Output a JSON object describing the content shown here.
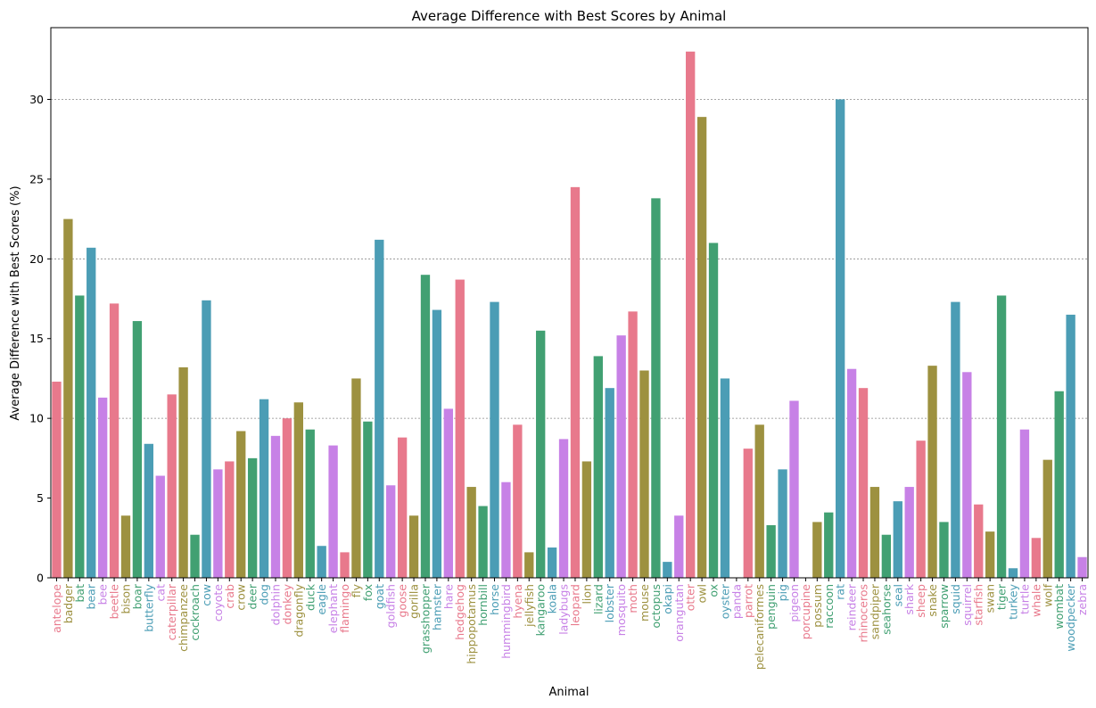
{
  "chart_data": {
    "type": "bar",
    "title": "Average Difference with Best Scores by Animal",
    "xlabel": "Animal",
    "ylabel": "Average Difference with Best Scores (%)",
    "ylim": [
      0,
      34.5
    ],
    "yticks": [
      0,
      5,
      10,
      15,
      20,
      25,
      30
    ],
    "grid": "horizontal dashed at 10, 20, 30",
    "palette": [
      "#e8798c",
      "#9d9140",
      "#41a072",
      "#4b9db5",
      "#c781e6"
    ],
    "categories": [
      "antelope",
      "badger",
      "bat",
      "bear",
      "bee",
      "beetle",
      "bison",
      "boar",
      "butterfly",
      "cat",
      "caterpillar",
      "chimpanzee",
      "cockroach",
      "cow",
      "coyote",
      "crab",
      "crow",
      "deer",
      "dog",
      "dolphin",
      "donkey",
      "dragonfly",
      "duck",
      "eagle",
      "elephant",
      "flamingo",
      "fly",
      "fox",
      "goat",
      "goldfish",
      "goose",
      "gorilla",
      "grasshopper",
      "hamster",
      "hare",
      "hedgehog",
      "hippopotamus",
      "hornbill",
      "horse",
      "hummingbird",
      "hyena",
      "jellyfish",
      "kangaroo",
      "koala",
      "ladybugs",
      "leopard",
      "lion",
      "lizard",
      "lobster",
      "mosquito",
      "moth",
      "mouse",
      "octopus",
      "okapi",
      "orangutan",
      "otter",
      "owl",
      "ox",
      "oyster",
      "panda",
      "parrot",
      "pelecaniformes",
      "penguin",
      "pig",
      "pigeon",
      "porcupine",
      "possum",
      "raccoon",
      "rat",
      "reindeer",
      "rhinoceros",
      "sandpiper",
      "seahorse",
      "seal",
      "shark",
      "sheep",
      "snake",
      "sparrow",
      "squid",
      "squirrel",
      "starfish",
      "swan",
      "tiger",
      "turkey",
      "turtle",
      "whale",
      "wolf",
      "wombat",
      "woodpecker",
      "zebra"
    ],
    "values": [
      12.3,
      22.5,
      17.7,
      20.7,
      11.3,
      17.2,
      3.9,
      16.1,
      8.4,
      6.4,
      11.5,
      13.2,
      2.7,
      17.4,
      6.8,
      7.3,
      9.2,
      7.5,
      11.2,
      8.9,
      10.0,
      11.0,
      9.3,
      2.0,
      8.3,
      1.6,
      12.5,
      9.8,
      21.2,
      5.8,
      8.8,
      3.9,
      19.0,
      16.8,
      10.6,
      18.7,
      5.7,
      4.5,
      17.3,
      6.0,
      9.6,
      1.6,
      15.5,
      1.9,
      8.7,
      24.5,
      7.3,
      13.9,
      11.9,
      15.2,
      16.7,
      13.0,
      23.8,
      1.0,
      3.9,
      33.0,
      28.9,
      21.0,
      12.5,
      0.0,
      8.1,
      9.6,
      3.3,
      6.8,
      11.1,
      0.0,
      3.5,
      4.1,
      30.0,
      13.1,
      11.9,
      5.7,
      2.7,
      4.8,
      5.7,
      8.6,
      13.3,
      3.5,
      17.3,
      12.9,
      4.6,
      2.9,
      17.7,
      0.6,
      9.3,
      2.5,
      7.4,
      11.7,
      16.5,
      1.3
    ]
  }
}
